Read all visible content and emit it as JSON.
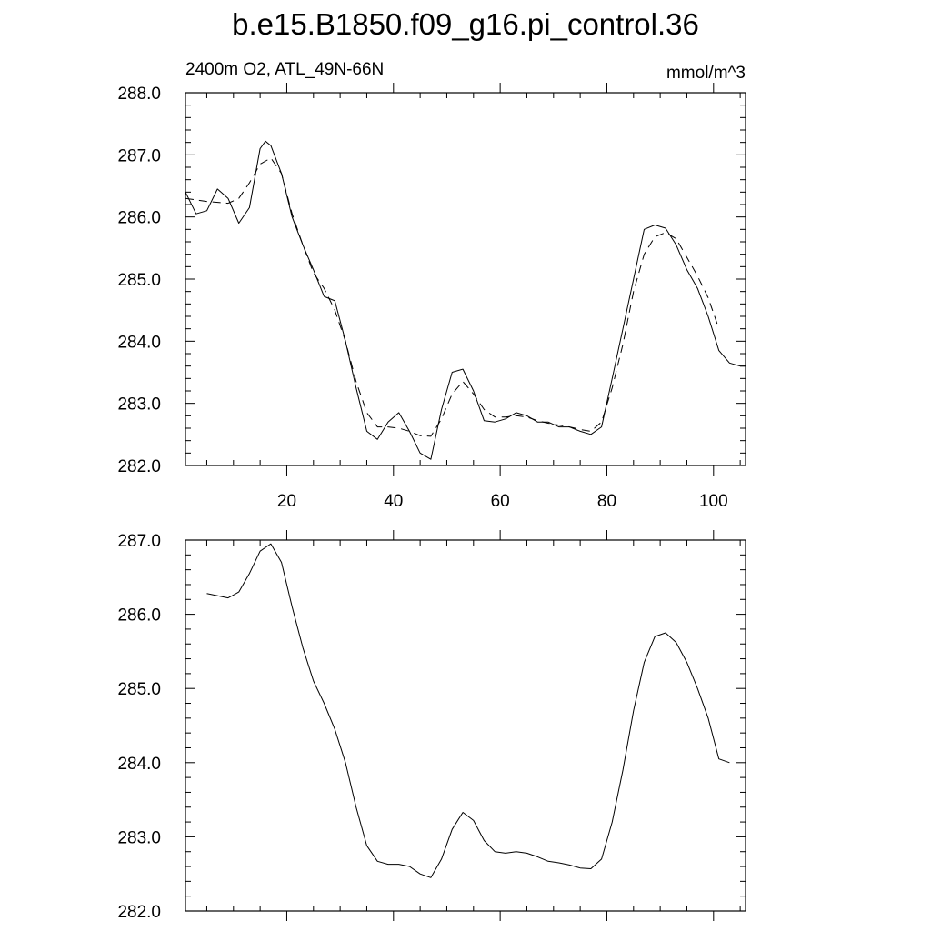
{
  "title": "b.e15.B1850.f09_g16.pi_control.36",
  "subtitle_left": "2400m O2, ATL_49N-66N",
  "subtitle_right": "mmol/m^3",
  "chart_data": [
    {
      "type": "line",
      "xlim": [
        1,
        106
      ],
      "ylim": [
        282.0,
        288.0
      ],
      "xticks": [
        20,
        40,
        60,
        80,
        100
      ],
      "xtick_labels": [
        "20",
        "40",
        "60",
        "80",
        "100"
      ],
      "yticks": [
        282,
        283,
        284,
        285,
        286,
        287,
        288
      ],
      "ytick_labels": [
        "282.0",
        "283.0",
        "284.0",
        "285.0",
        "286.0",
        "287.0",
        "288.0"
      ],
      "grid": false,
      "series": [
        {
          "style": "solid",
          "x": [
            1,
            3,
            5,
            7,
            9,
            11,
            13,
            15,
            16,
            17,
            19,
            21,
            23,
            25,
            27,
            29,
            31,
            33,
            35,
            37,
            39,
            41,
            43,
            45,
            47,
            49,
            51,
            53,
            55,
            57,
            59,
            61,
            63,
            65,
            67,
            69,
            71,
            73,
            75,
            77,
            79,
            81,
            83,
            85,
            87,
            89,
            91,
            93,
            95,
            97,
            99,
            101,
            103,
            105,
            106
          ],
          "y": [
            286.4,
            286.05,
            286.1,
            286.45,
            286.3,
            285.9,
            286.15,
            287.1,
            287.22,
            287.15,
            286.7,
            286.0,
            285.55,
            285.15,
            284.72,
            284.65,
            284.0,
            283.25,
            282.55,
            282.42,
            282.7,
            282.85,
            282.55,
            282.2,
            282.1,
            282.9,
            283.5,
            283.55,
            283.2,
            282.72,
            282.7,
            282.75,
            282.85,
            282.8,
            282.7,
            282.7,
            282.62,
            282.62,
            282.55,
            282.5,
            282.62,
            283.4,
            284.2,
            285.0,
            285.8,
            285.87,
            285.82,
            285.55,
            285.15,
            284.85,
            284.4,
            283.85,
            283.65,
            283.6,
            283.6
          ]
        },
        {
          "style": "dashed",
          "x": [
            1,
            5,
            9,
            11,
            13,
            15,
            17,
            19,
            21,
            23,
            25,
            27,
            29,
            31,
            33,
            35,
            37,
            39,
            41,
            43,
            45,
            47,
            49,
            51,
            53,
            55,
            57,
            59,
            61,
            63,
            65,
            67,
            69,
            71,
            73,
            75,
            77,
            79,
            81,
            83,
            85,
            87,
            89,
            91,
            93,
            95,
            97,
            99,
            101
          ],
          "y": [
            286.3,
            286.25,
            286.22,
            286.3,
            286.55,
            286.85,
            286.95,
            286.7,
            286.05,
            285.55,
            285.1,
            284.85,
            284.5,
            284.0,
            283.35,
            282.85,
            282.62,
            282.62,
            282.6,
            282.55,
            282.48,
            282.47,
            282.75,
            283.15,
            283.35,
            283.15,
            282.9,
            282.78,
            282.78,
            282.8,
            282.78,
            282.72,
            282.68,
            282.65,
            282.62,
            282.58,
            282.55,
            282.7,
            283.25,
            283.95,
            284.8,
            285.4,
            285.68,
            285.75,
            285.65,
            285.35,
            285.05,
            284.7,
            284.2
          ]
        }
      ]
    },
    {
      "type": "line",
      "xlim": [
        1,
        106
      ],
      "ylim": [
        282.0,
        287.0
      ],
      "xticks": [
        20,
        40,
        60,
        80,
        100
      ],
      "yticks": [
        282,
        283,
        284,
        285,
        286,
        287
      ],
      "ytick_labels": [
        "282.0",
        "283.0",
        "284.0",
        "285.0",
        "286.0",
        "287.0"
      ],
      "grid": false,
      "series": [
        {
          "style": "solid",
          "x": [
            5,
            9,
            11,
            13,
            15,
            17,
            19,
            21,
            23,
            25,
            27,
            29,
            31,
            33,
            35,
            37,
            39,
            41,
            43,
            45,
            47,
            49,
            51,
            53,
            55,
            57,
            59,
            61,
            63,
            65,
            67,
            69,
            71,
            73,
            75,
            77,
            79,
            81,
            83,
            85,
            87,
            89,
            91,
            93,
            95,
            97,
            99,
            101,
            103
          ],
          "y": [
            286.28,
            286.22,
            286.3,
            286.55,
            286.85,
            286.95,
            286.7,
            286.1,
            285.55,
            285.1,
            284.8,
            284.45,
            284.0,
            283.4,
            282.88,
            282.67,
            282.63,
            282.63,
            282.6,
            282.5,
            282.45,
            282.7,
            283.1,
            283.33,
            283.22,
            282.95,
            282.8,
            282.78,
            282.8,
            282.78,
            282.73,
            282.67,
            282.65,
            282.62,
            282.58,
            282.57,
            282.7,
            283.2,
            283.9,
            284.7,
            285.35,
            285.7,
            285.75,
            285.62,
            285.35,
            285.0,
            284.6,
            284.05,
            284.0
          ]
        }
      ]
    }
  ]
}
